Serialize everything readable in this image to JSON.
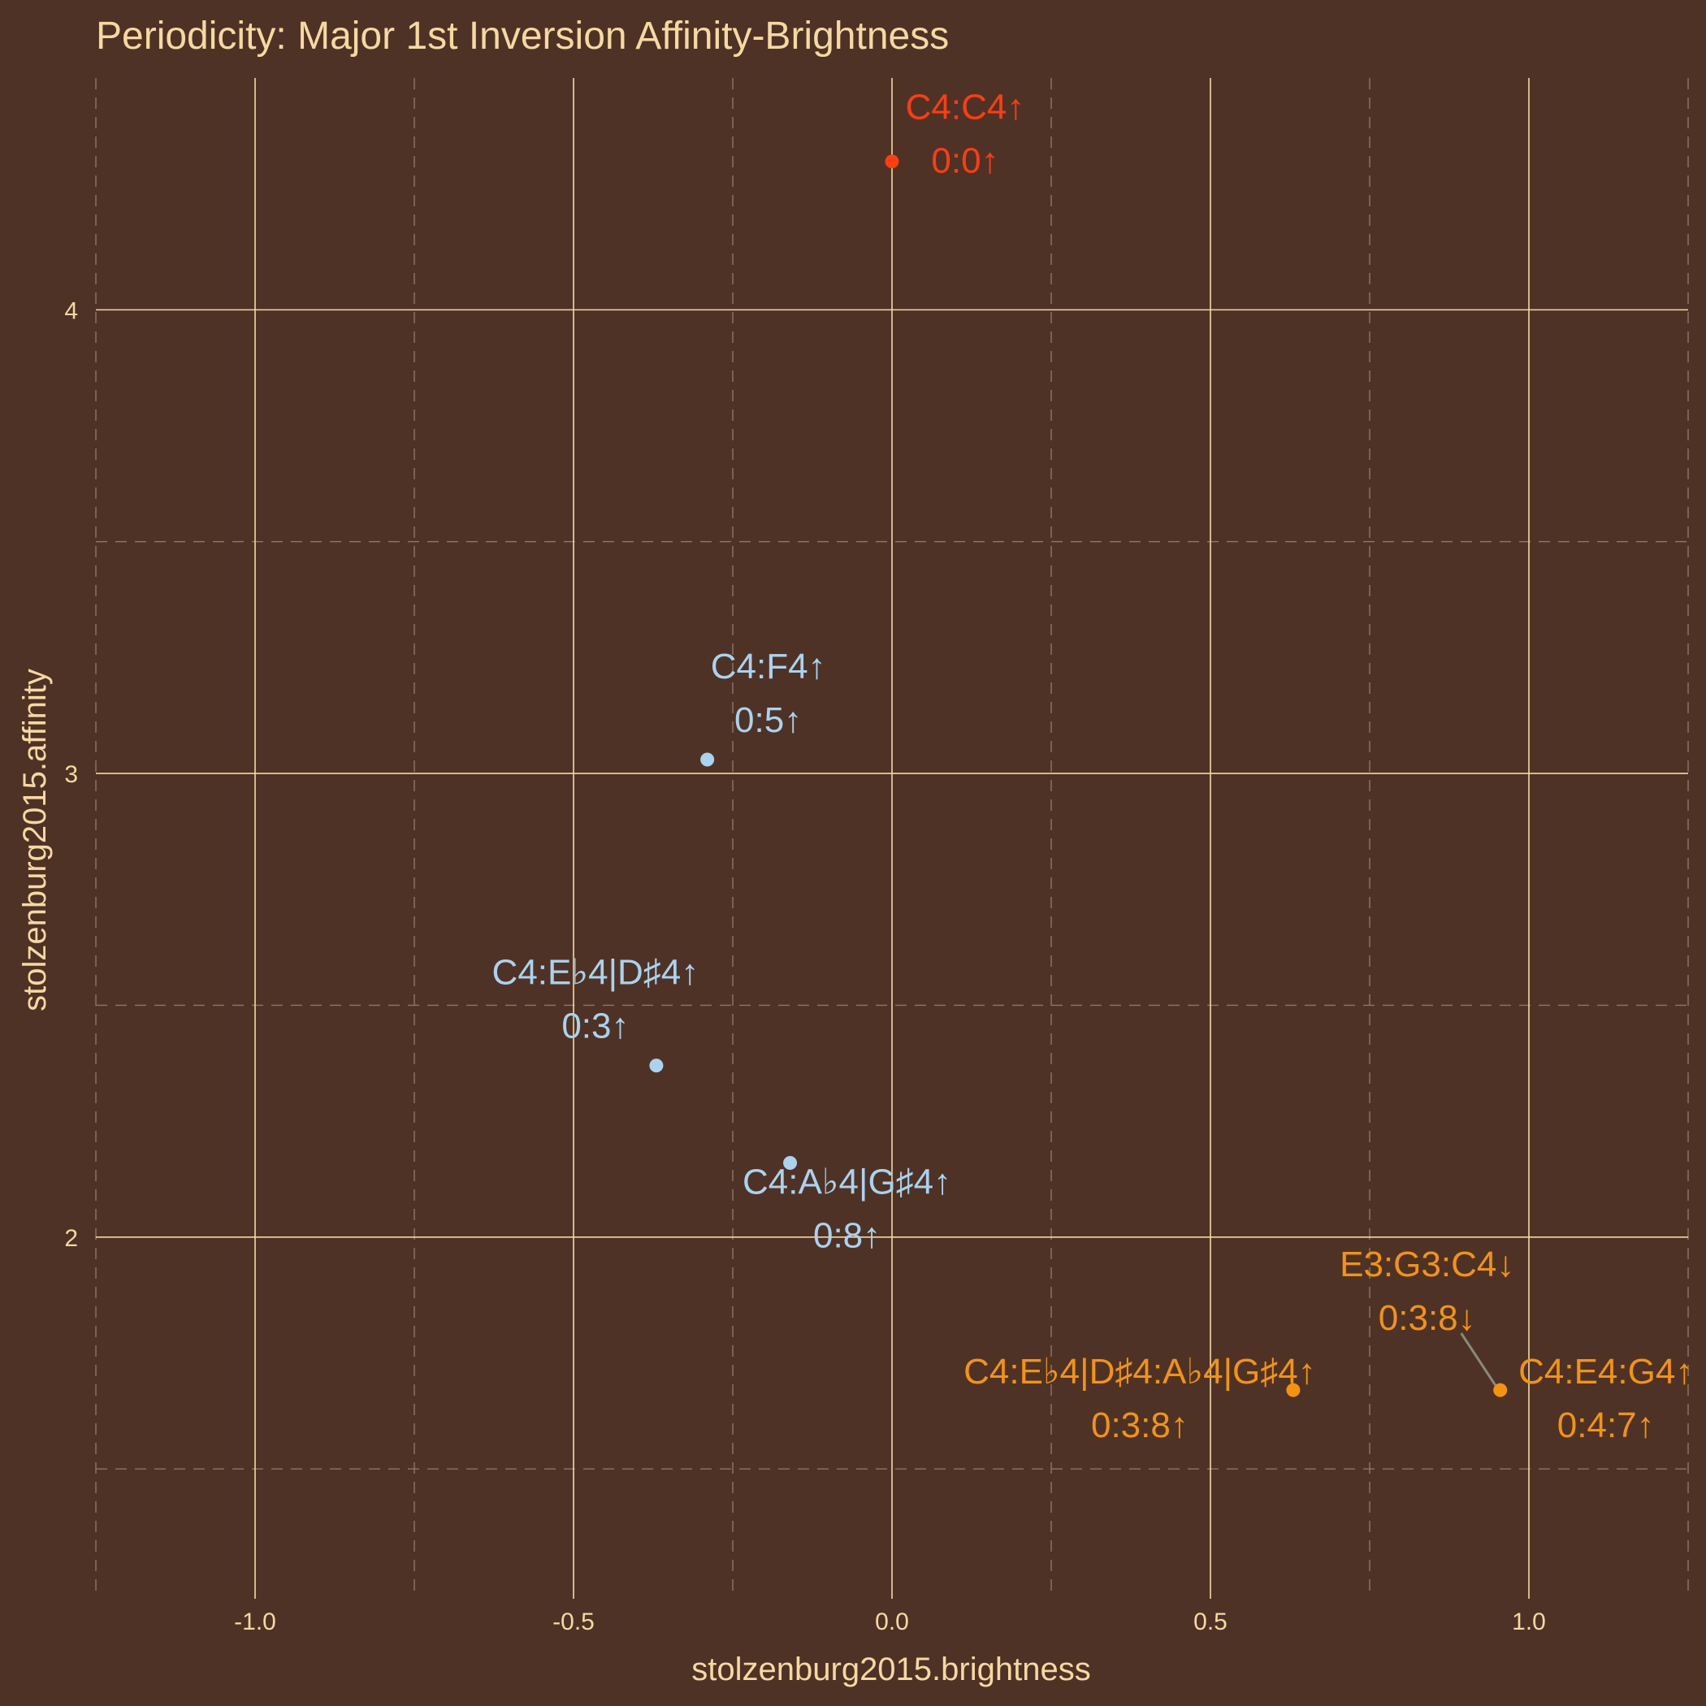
{
  "chart_data": {
    "type": "scatter",
    "title": "Periodicity: Major 1st Inversion Affinity-Brightness",
    "xlabel": "stolzenburg2015.brightness",
    "ylabel": "stolzenburg2015.affinity",
    "xlim": [
      -1.25,
      1.25
    ],
    "ylim": [
      1.22,
      4.5
    ],
    "xticks": [
      -1.0,
      -0.5,
      0.0,
      0.5,
      1.0
    ],
    "xtick_labels": [
      "-1.0",
      "-0.5",
      "0.0",
      "0.5",
      "1.0"
    ],
    "yticks": [
      2,
      3,
      4
    ],
    "ytick_labels": [
      "2",
      "3",
      "4"
    ],
    "grid": true,
    "legend": "none",
    "colors": {
      "background": "#4f3226",
      "text": "#f5d9a1",
      "red": "#ff3d12",
      "blue": "#a9d3ee",
      "orange": "#f3940f",
      "connector": "#8a8a7a"
    },
    "points": [
      {
        "x": 0.0,
        "y": 4.32,
        "color": "red",
        "label1": "C4:C4↑",
        "label2": "0:0↑"
      },
      {
        "x": -0.29,
        "y": 3.03,
        "color": "blue",
        "label1": "C4:F4↑",
        "label2": "0:5↑"
      },
      {
        "x": -0.37,
        "y": 2.37,
        "color": "blue",
        "label1": "C4:E♭4|D♯4↑",
        "label2": "0:3↑"
      },
      {
        "x": -0.16,
        "y": 2.16,
        "color": "blue",
        "label1": "C4:A♭4|G♯4↑",
        "label2": "0:8↑"
      },
      {
        "x": 0.63,
        "y": 1.67,
        "color": "orange",
        "label1": "C4:E♭4|D♯4:A♭4|G♯4↑",
        "label2": "0:3:8↑"
      },
      {
        "x": 0.955,
        "y": 1.67,
        "color": "orange",
        "label1": "C4:E4:G4↑",
        "label2": "0:4:7↑"
      },
      {
        "x": 0.955,
        "y": 1.67,
        "color": "orange",
        "label1": "E3:G3:C4↓",
        "label2": "0:3:8↓"
      }
    ]
  }
}
